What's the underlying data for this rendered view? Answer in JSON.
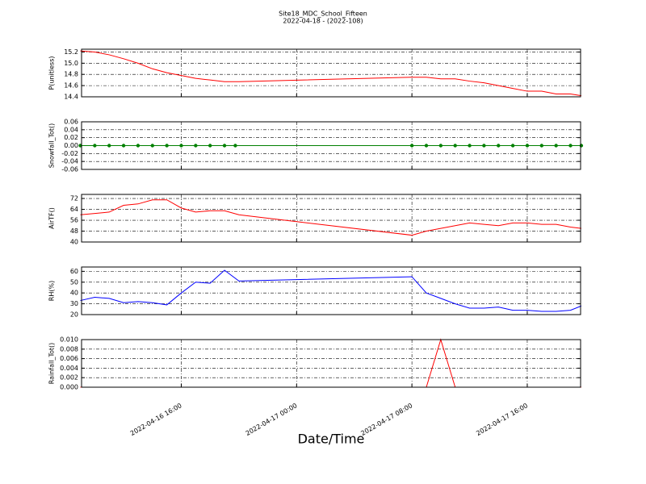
{
  "chart_data": [
    {
      "type": "line",
      "title": "Site18_MDC_School_Fifteen",
      "subtitle": "2022-04-18 - (2022-108)",
      "y_label": "P(unitless)",
      "color": "#ff0000",
      "grid": true,
      "x": [
        "2022-04-16 09:00",
        "2022-04-16 10:00",
        "2022-04-16 11:00",
        "2022-04-16 12:00",
        "2022-04-16 13:00",
        "2022-04-16 14:00",
        "2022-04-16 15:00",
        "2022-04-16 16:00",
        "2022-04-16 17:00",
        "2022-04-16 18:00",
        "2022-04-16 19:00",
        "2022-04-16 20:00",
        "2022-04-17 08:00",
        "2022-04-17 09:00",
        "2022-04-17 10:00",
        "2022-04-17 11:00",
        "2022-04-17 12:00",
        "2022-04-17 13:00",
        "2022-04-17 14:00",
        "2022-04-17 15:00",
        "2022-04-17 16:00",
        "2022-04-17 17:00",
        "2022-04-17 18:00",
        "2022-04-17 19:00",
        "2022-04-17 19:45"
      ],
      "values": [
        15.22,
        15.2,
        15.15,
        15.08,
        15.0,
        14.9,
        14.83,
        14.78,
        14.73,
        14.7,
        14.67,
        14.67,
        14.75,
        14.75,
        14.72,
        14.72,
        14.68,
        14.65,
        14.6,
        14.55,
        14.5,
        14.5,
        14.45,
        14.45,
        14.42
      ],
      "ylim": [
        14.4,
        15.25
      ],
      "yticks": [
        14.4,
        14.6,
        14.8,
        {
          "value": 15,
          "label": "15.0"
        },
        15.2
      ]
    },
    {
      "type": "line",
      "y_label": "Snowfall_Tot()",
      "color": "#008000",
      "marker": "circle",
      "grid": true,
      "x": [
        "2022-04-16 09:00",
        "2022-04-16 10:00",
        "2022-04-16 11:00",
        "2022-04-16 12:00",
        "2022-04-16 13:00",
        "2022-04-16 14:00",
        "2022-04-16 15:00",
        "2022-04-16 16:00",
        "2022-04-16 17:00",
        "2022-04-16 18:00",
        "2022-04-16 19:00",
        "2022-04-16 19:45",
        "2022-04-17 08:00",
        "2022-04-17 09:00",
        "2022-04-17 10:00",
        "2022-04-17 11:00",
        "2022-04-17 12:00",
        "2022-04-17 13:00",
        "2022-04-17 14:00",
        "2022-04-17 15:00",
        "2022-04-17 16:00",
        "2022-04-17 17:00",
        "2022-04-17 18:00",
        "2022-04-17 19:00",
        "2022-04-17 19:45"
      ],
      "values": [
        0,
        0,
        0,
        0,
        0,
        0,
        0,
        0,
        0,
        0,
        0,
        0,
        0,
        0,
        0,
        0,
        0,
        0,
        0,
        0,
        0,
        0,
        0,
        0,
        0
      ],
      "ylim": [
        -0.06,
        0.06
      ],
      "yticks": [
        -0.06,
        -0.04,
        -0.02,
        {
          "value": 0,
          "label": "0.00"
        },
        0.02,
        0.04,
        0.06
      ]
    },
    {
      "type": "line",
      "y_label": "AirTF()",
      "color": "#ff0000",
      "grid": true,
      "x": [
        "2022-04-16 09:00",
        "2022-04-16 10:00",
        "2022-04-16 11:00",
        "2022-04-16 12:00",
        "2022-04-16 13:00",
        "2022-04-16 14:00",
        "2022-04-16 15:00",
        "2022-04-16 16:00",
        "2022-04-16 17:00",
        "2022-04-16 18:00",
        "2022-04-16 19:00",
        "2022-04-16 20:00",
        "2022-04-17 08:00",
        "2022-04-17 09:00",
        "2022-04-17 10:00",
        "2022-04-17 11:00",
        "2022-04-17 12:00",
        "2022-04-17 13:00",
        "2022-04-17 14:00",
        "2022-04-17 15:00",
        "2022-04-17 16:00",
        "2022-04-17 17:00",
        "2022-04-17 18:00",
        "2022-04-17 19:00",
        "2022-04-17 19:45"
      ],
      "values": [
        60,
        61,
        62,
        67,
        68,
        71,
        71,
        65,
        62,
        63,
        63,
        60,
        45,
        48,
        50,
        52,
        54,
        53,
        52,
        54,
        54,
        53,
        53,
        51,
        50
      ],
      "ylim": [
        40,
        75
      ],
      "yticks": [
        40,
        48,
        56,
        64,
        72
      ]
    },
    {
      "type": "line",
      "y_label": "RH(%)",
      "color": "#0000ff",
      "grid": true,
      "x": [
        "2022-04-16 09:00",
        "2022-04-16 10:00",
        "2022-04-16 11:00",
        "2022-04-16 12:00",
        "2022-04-16 13:00",
        "2022-04-16 14:00",
        "2022-04-16 15:00",
        "2022-04-16 16:00",
        "2022-04-16 17:00",
        "2022-04-16 18:00",
        "2022-04-16 19:00",
        "2022-04-16 20:00",
        "2022-04-17 08:00",
        "2022-04-17 09:00",
        "2022-04-17 10:00",
        "2022-04-17 11:00",
        "2022-04-17 12:00",
        "2022-04-17 13:00",
        "2022-04-17 14:00",
        "2022-04-17 15:00",
        "2022-04-17 16:00",
        "2022-04-17 17:00",
        "2022-04-17 18:00",
        "2022-04-17 19:00",
        "2022-04-17 19:45"
      ],
      "values": [
        33,
        36,
        35,
        31,
        32,
        31,
        29,
        40,
        50,
        49,
        61,
        51,
        55,
        40,
        35,
        30,
        26,
        26,
        27,
        24,
        24,
        23,
        23,
        24,
        28
      ],
      "ylim": [
        20,
        64
      ],
      "yticks": [
        20,
        30,
        40,
        50,
        60
      ]
    },
    {
      "type": "line",
      "y_label": "Rainfall_Tot()",
      "x_label": "Date/Time",
      "color": "#ff0000",
      "grid": true,
      "x": [
        "2022-04-16 09:00",
        "2022-04-16 10:00",
        "2022-04-16 11:00",
        "2022-04-16 12:00",
        "2022-04-16 13:00",
        "2022-04-16 14:00",
        "2022-04-16 15:00",
        "2022-04-16 16:00",
        "2022-04-16 17:00",
        "2022-04-16 18:00",
        "2022-04-16 19:00",
        "2022-04-16 20:00",
        "2022-04-17 08:00",
        "2022-04-17 09:00",
        "2022-04-17 10:00",
        "2022-04-17 11:00",
        "2022-04-17 12:00",
        "2022-04-17 13:00",
        "2022-04-17 14:00",
        "2022-04-17 15:00",
        "2022-04-17 16:00",
        "2022-04-17 17:00",
        "2022-04-17 18:00",
        "2022-04-17 19:00",
        "2022-04-17 19:45"
      ],
      "values": [
        0,
        0,
        0,
        0,
        0,
        0,
        0,
        0,
        0,
        0,
        0,
        0,
        0,
        0,
        0.01,
        0,
        0,
        0,
        0,
        0,
        0,
        0,
        0,
        0,
        0
      ],
      "ylim": [
        0,
        0.01
      ],
      "yticks": [
        {
          "value": 0,
          "label": "0.000"
        },
        0.002,
        0.004,
        0.006,
        0.008,
        {
          "value": 0.01,
          "label": "0.010"
        }
      ],
      "xlim": [
        "2022-04-16 09:05",
        "2022-04-17 19:42"
      ],
      "xticks": [
        "2022-04-16 16:00",
        "2022-04-17 00:00",
        "2022-04-17 08:00",
        "2022-04-17 16:00"
      ]
    }
  ]
}
